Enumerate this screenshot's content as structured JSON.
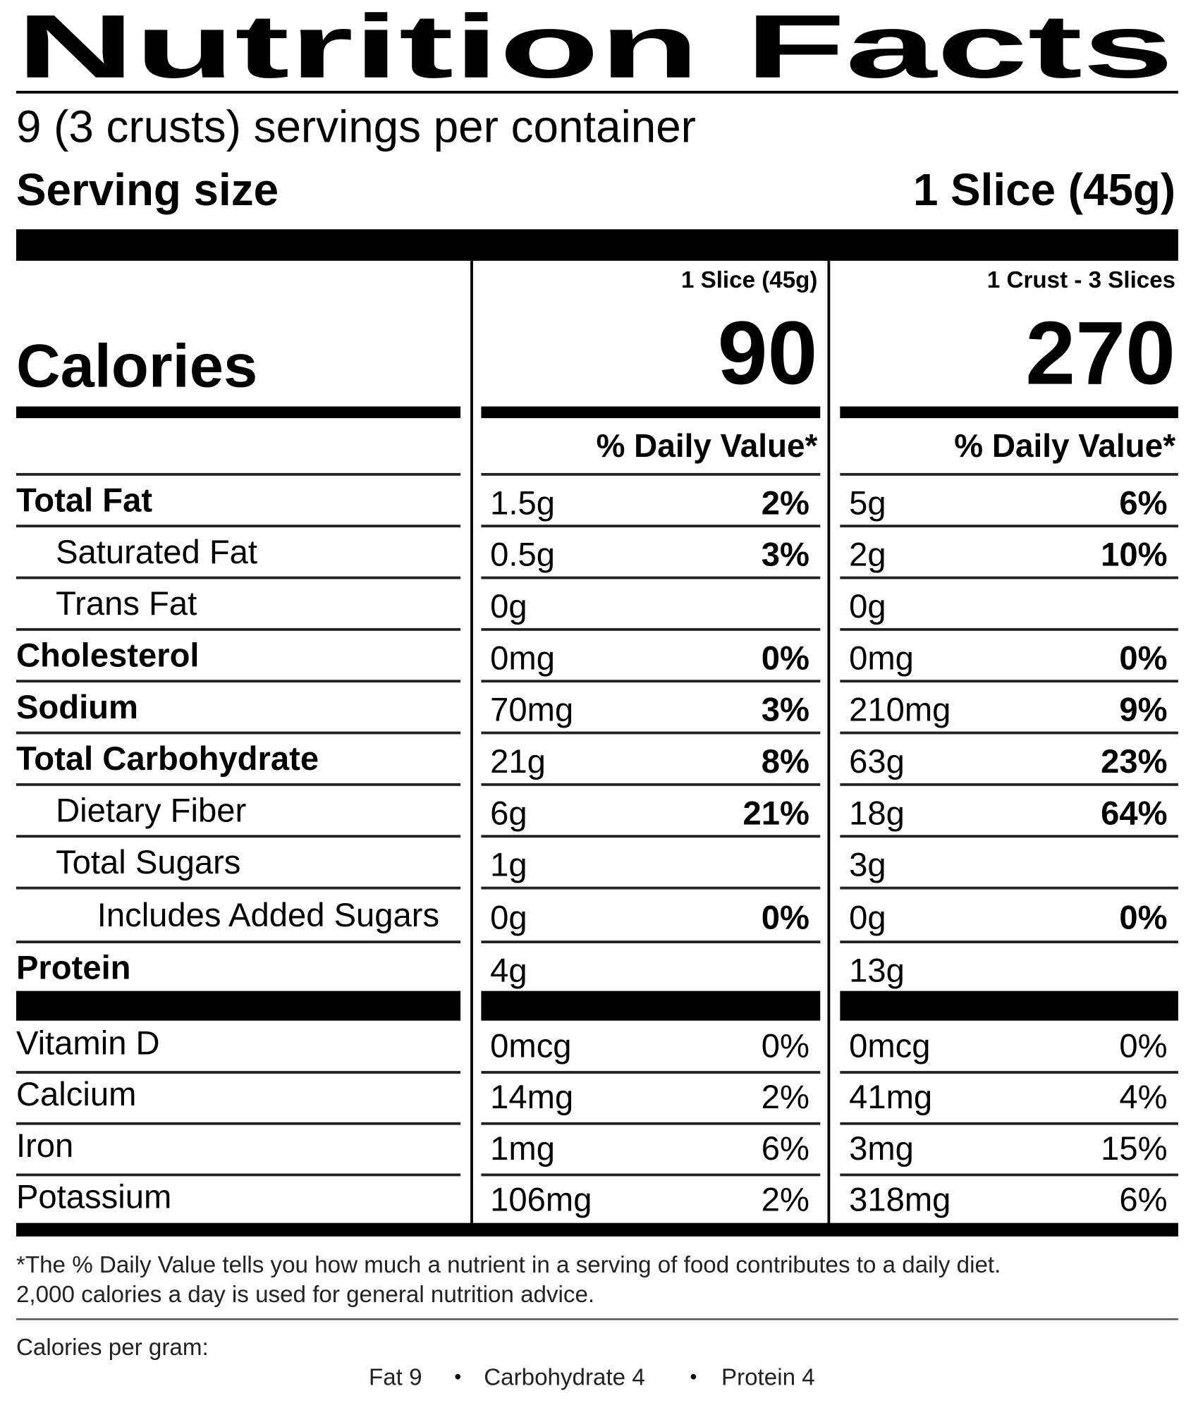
{
  "title": "Nutrition Facts",
  "servings": "9 (3 crusts) servings per container",
  "serving_size": {
    "label": "Serving size",
    "value": "1 Slice (45g)"
  },
  "calories": {
    "label": "Calories",
    "columns": [
      {
        "header": "1 Slice (45g)",
        "value": "90"
      },
      {
        "header": "1 Crust - 3 Slices",
        "value": "270"
      }
    ]
  },
  "dv_headers": [
    "% Daily Value*",
    "% Daily Value*"
  ],
  "nutrients": [
    {
      "name": "Total Fat",
      "indent": 0,
      "bold": true,
      "cols": [
        {
          "amount": "1.5g",
          "dv": "2%"
        },
        {
          "amount": "5g",
          "dv": "6%"
        }
      ]
    },
    {
      "name": "Saturated Fat",
      "indent": 1,
      "bold": false,
      "cols": [
        {
          "amount": "0.5g",
          "dv": "3%"
        },
        {
          "amount": "2g",
          "dv": "10%"
        }
      ]
    },
    {
      "name": "Trans Fat",
      "indent": 1,
      "bold": false,
      "cols": [
        {
          "amount": "0g",
          "dv": null
        },
        {
          "amount": "0g",
          "dv": null
        }
      ]
    },
    {
      "name": "Cholesterol",
      "indent": 0,
      "bold": true,
      "cols": [
        {
          "amount": "0mg",
          "dv": "0%"
        },
        {
          "amount": "0mg",
          "dv": "0%"
        }
      ]
    },
    {
      "name": "Sodium",
      "indent": 0,
      "bold": true,
      "cols": [
        {
          "amount": "70mg",
          "dv": "3%"
        },
        {
          "amount": "210mg",
          "dv": "9%"
        }
      ]
    },
    {
      "name": "Total Carbohydrate",
      "indent": 0,
      "bold": true,
      "cols": [
        {
          "amount": "21g",
          "dv": "8%"
        },
        {
          "amount": "63g",
          "dv": "23%"
        }
      ]
    },
    {
      "name": "Dietary Fiber",
      "indent": 1,
      "bold": false,
      "cols": [
        {
          "amount": "6g",
          "dv": "21%"
        },
        {
          "amount": "18g",
          "dv": "64%"
        }
      ]
    },
    {
      "name": "Total Sugars",
      "indent": 1,
      "bold": false,
      "cols": [
        {
          "amount": "1g",
          "dv": null
        },
        {
          "amount": "3g",
          "dv": null
        }
      ]
    },
    {
      "name": "Includes Added Sugars",
      "indent": 2,
      "bold": false,
      "cols": [
        {
          "amount": "0g",
          "dv": "0%"
        },
        {
          "amount": "0g",
          "dv": "0%"
        }
      ]
    },
    {
      "name": "Protein",
      "indent": 0,
      "bold": true,
      "cols": [
        {
          "amount": "4g",
          "dv": null
        },
        {
          "amount": "13g",
          "dv": null
        }
      ]
    }
  ],
  "vitamins": [
    {
      "name": "Vitamin D",
      "cols": [
        {
          "amount": "0mcg",
          "dv": "0%"
        },
        {
          "amount": "0mcg",
          "dv": "0%"
        }
      ]
    },
    {
      "name": "Calcium",
      "cols": [
        {
          "amount": "14mg",
          "dv": "2%"
        },
        {
          "amount": "41mg",
          "dv": "4%"
        }
      ]
    },
    {
      "name": "Iron",
      "cols": [
        {
          "amount": "1mg",
          "dv": "6%"
        },
        {
          "amount": "3mg",
          "dv": "15%"
        }
      ]
    },
    {
      "name": "Potassium",
      "cols": [
        {
          "amount": "106mg",
          "dv": "2%"
        },
        {
          "amount": "318mg",
          "dv": "6%"
        }
      ]
    }
  ],
  "footnote": [
    "*The % Daily Value tells you how much a nutrient in a serving of food contributes to a daily diet.",
    "2,000 calories a day is used for general nutrition advice."
  ],
  "calories_per_gram": {
    "label": "Calories per gram:",
    "items": [
      "Fat 9",
      "Carbohydrate 4",
      "Protein 4"
    ]
  }
}
